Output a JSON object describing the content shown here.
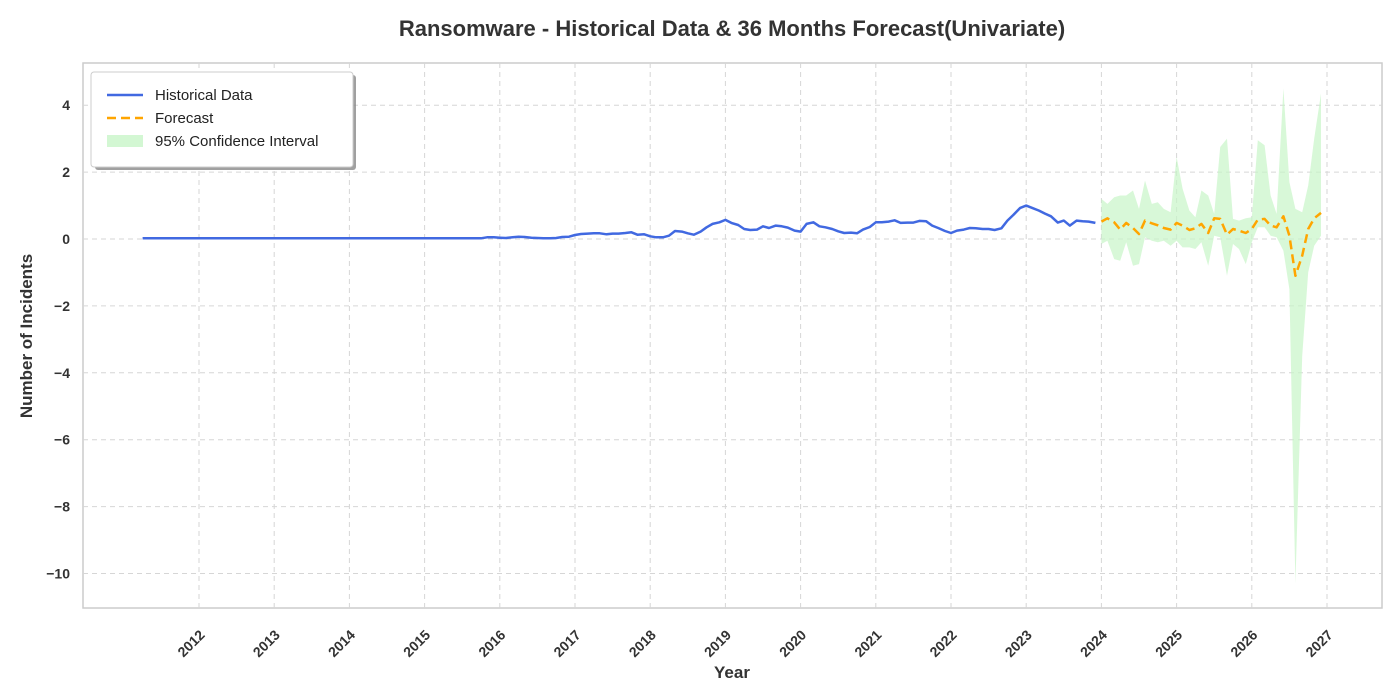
{
  "chart_data": {
    "type": "line",
    "title": "Ransomware - Historical Data & 36 Months Forecast(Univariate)",
    "xlabel": "Year",
    "ylabel": "Number of Incidents",
    "xlim": [
      2011.0,
      2027.2
    ],
    "ylim": [
      -11,
      5.2
    ],
    "x_ticks": [
      "2012",
      "2013",
      "2014",
      "2015",
      "2016",
      "2017",
      "2018",
      "2019",
      "2020",
      "2021",
      "2022",
      "2023",
      "2024",
      "2025",
      "2026",
      "2027"
    ],
    "y_ticks": [
      4,
      2,
      0,
      -2,
      -4,
      -6,
      -8,
      -10
    ],
    "grid": true,
    "legend_position": "top-left",
    "legend": [
      "Historical Data",
      "Forecast",
      "95% Confidence Interval"
    ],
    "colors": {
      "historical": "#4169e1",
      "forecast": "#ffa500",
      "ci_fill": "#c8f5c8"
    },
    "historical": {
      "name": "Historical Data",
      "x": [
        2011.25,
        2011.5,
        2011.75,
        2012,
        2012.25,
        2012.5,
        2012.75,
        2013,
        2013.25,
        2013.5,
        2013.75,
        2014,
        2014.25,
        2014.5,
        2014.75,
        2015,
        2015.25,
        2015.5,
        2015.75,
        2015.83,
        2015.92,
        2016,
        2016.08,
        2016.17,
        2016.25,
        2016.33,
        2016.42,
        2016.5,
        2016.58,
        2016.67,
        2016.75,
        2016.83,
        2016.92,
        2017,
        2017.08,
        2017.17,
        2017.25,
        2017.33,
        2017.42,
        2017.5,
        2017.58,
        2017.67,
        2017.75,
        2017.83,
        2017.92,
        2018,
        2018.08,
        2018.17,
        2018.25,
        2018.33,
        2018.42,
        2018.5,
        2018.58,
        2018.67,
        2018.75,
        2018.83,
        2018.92,
        2019,
        2019.08,
        2019.17,
        2019.25,
        2019.33,
        2019.42,
        2019.5,
        2019.58,
        2019.67,
        2019.75,
        2019.83,
        2019.92,
        2020,
        2020.08,
        2020.17,
        2020.25,
        2020.33,
        2020.42,
        2020.5,
        2020.58,
        2020.67,
        2020.75,
        2020.83,
        2020.92,
        2021,
        2021.08,
        2021.17,
        2021.25,
        2021.33,
        2021.42,
        2021.5,
        2021.58,
        2021.67,
        2021.75,
        2021.83,
        2021.92,
        2022,
        2022.08,
        2022.17,
        2022.25,
        2022.33,
        2022.42,
        2022.5,
        2022.58,
        2022.67,
        2022.75,
        2022.83,
        2022.92,
        2023,
        2023.08,
        2023.17,
        2023.25,
        2023.33,
        2023.42,
        2023.5,
        2023.58,
        2023.67,
        2023.75,
        2023.83,
        2023.92
      ],
      "y": [
        0.02,
        0.02,
        0.02,
        0.02,
        0.02,
        0.02,
        0.02,
        0.02,
        0.02,
        0.02,
        0.02,
        0.02,
        0.02,
        0.02,
        0.02,
        0.02,
        0.02,
        0.02,
        0.02,
        0.05,
        0.05,
        0.04,
        0.03,
        0.05,
        0.07,
        0.06,
        0.04,
        0.03,
        0.02,
        0.02,
        0.03,
        0.06,
        0.07,
        0.12,
        0.15,
        0.16,
        0.17,
        0.17,
        0.14,
        0.16,
        0.16,
        0.18,
        0.2,
        0.13,
        0.14,
        0.08,
        0.05,
        0.05,
        0.1,
        0.24,
        0.22,
        0.17,
        0.13,
        0.22,
        0.35,
        0.45,
        0.5,
        0.57,
        0.48,
        0.42,
        0.3,
        0.27,
        0.28,
        0.38,
        0.33,
        0.4,
        0.38,
        0.34,
        0.25,
        0.22,
        0.45,
        0.5,
        0.38,
        0.35,
        0.3,
        0.23,
        0.18,
        0.19,
        0.17,
        0.28,
        0.36,
        0.5,
        0.5,
        0.52,
        0.56,
        0.48,
        0.49,
        0.49,
        0.54,
        0.53,
        0.4,
        0.33,
        0.24,
        0.18,
        0.25,
        0.28,
        0.33,
        0.32,
        0.3,
        0.3,
        0.27,
        0.32,
        0.55,
        0.72,
        0.93,
        1.0,
        0.93,
        0.85,
        0.76,
        0.68,
        0.49,
        0.55,
        0.4,
        0.55,
        0.53,
        0.52,
        0.48
      ]
    },
    "forecast": {
      "name": "Forecast",
      "x": [
        2024.0,
        2024.08,
        2024.17,
        2024.25,
        2024.33,
        2024.42,
        2024.5,
        2024.58,
        2024.67,
        2024.75,
        2024.83,
        2024.92,
        2025.0,
        2025.08,
        2025.17,
        2025.25,
        2025.33,
        2025.42,
        2025.5,
        2025.58,
        2025.67,
        2025.75,
        2025.83,
        2025.92,
        2026.0,
        2026.08,
        2026.17,
        2026.25,
        2026.33,
        2026.42,
        2026.5,
        2026.58,
        2026.67,
        2026.75,
        2026.83,
        2026.92
      ],
      "y": [
        0.52,
        0.62,
        0.5,
        0.28,
        0.48,
        0.33,
        0.15,
        0.55,
        0.47,
        0.41,
        0.33,
        0.28,
        0.48,
        0.4,
        0.27,
        0.32,
        0.45,
        0.18,
        0.62,
        0.6,
        0.13,
        0.3,
        0.25,
        0.18,
        0.3,
        0.58,
        0.6,
        0.4,
        0.35,
        0.68,
        0.1,
        -1.1,
        -0.5,
        0.3,
        0.62,
        0.78
      ],
      "ci_lower": [
        -0.15,
        -0.05,
        -0.6,
        -0.65,
        -0.1,
        -0.8,
        -0.75,
        0.05,
        -0.05,
        -0.1,
        -0.05,
        -0.2,
        -0.05,
        -0.25,
        -0.25,
        -0.3,
        -0.1,
        -0.8,
        0.1,
        0.05,
        -1.1,
        -0.15,
        -0.3,
        -0.75,
        -0.1,
        0.35,
        0.35,
        0.1,
        0.05,
        -0.35,
        -1.5,
        -10.3,
        -3.5,
        -1.0,
        -0.2,
        0.1
      ],
      "ci_upper": [
        1.2,
        1.05,
        1.25,
        1.3,
        1.3,
        1.45,
        0.9,
        1.75,
        1.05,
        1.1,
        0.9,
        0.8,
        2.45,
        1.5,
        0.85,
        0.65,
        1.45,
        1.3,
        0.75,
        2.75,
        3.0,
        0.6,
        0.55,
        0.62,
        0.65,
        2.95,
        2.8,
        1.3,
        0.75,
        4.5,
        1.7,
        0.9,
        0.8,
        1.6,
        3.0,
        4.35
      ]
    }
  }
}
